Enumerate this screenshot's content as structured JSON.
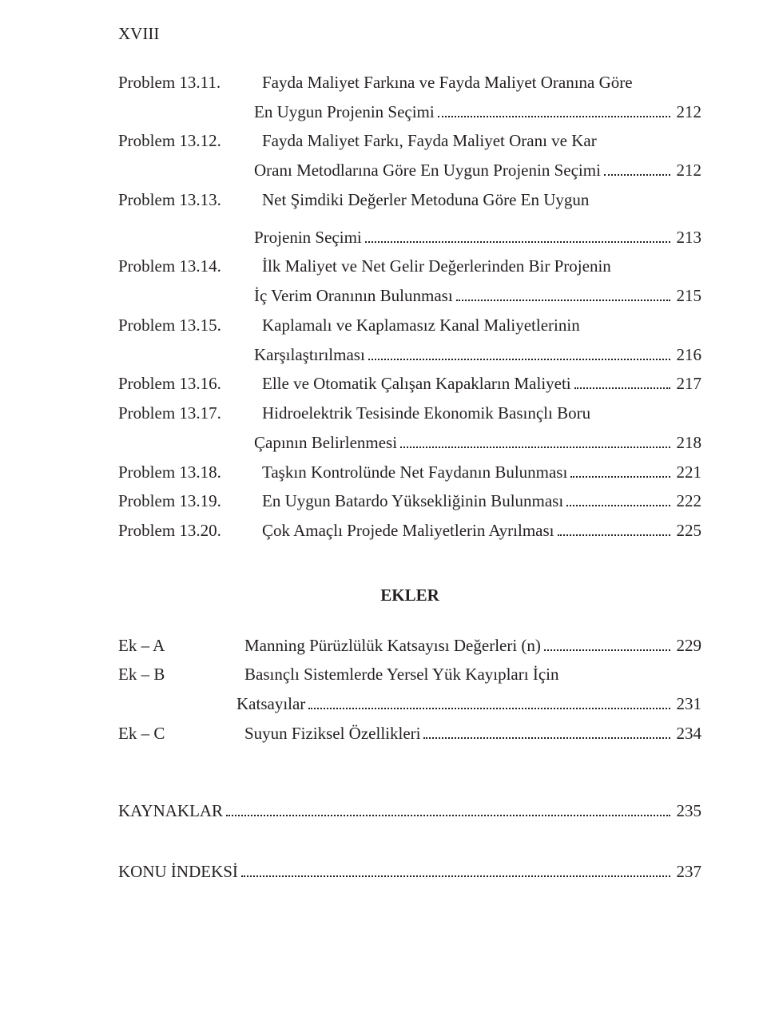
{
  "header": "XVIII",
  "toc": [
    {
      "label": "Problem 13.11.",
      "lines": [
        "Fayda Maliyet Farkına ve Fayda Maliyet Oranına Göre",
        "En Uygun Projenin Seçimi"
      ],
      "page": "212"
    },
    {
      "label": "Problem 13.12.",
      "lines": [
        "Fayda Maliyet Farkı, Fayda Maliyet Oranı ve Kar",
        "Oranı Metodlarına Göre En Uygun Projenin Seçimi"
      ],
      "page": "212"
    },
    {
      "label": "Problem 13.13.",
      "lines": [
        "Net Şimdiki Değerler Metoduna Göre En Uygun",
        "Projenin Seçimi"
      ],
      "page": "213",
      "extra_gap": true
    },
    {
      "label": "Problem 13.14.",
      "lines": [
        "İlk Maliyet ve Net Gelir Değerlerinden Bir Projenin",
        "İç Verim Oranının Bulunması"
      ],
      "page": "215"
    },
    {
      "label": "Problem 13.15.",
      "lines": [
        "Kaplamalı ve Kaplamasız Kanal Maliyetlerinin",
        "Karşılaştırılması"
      ],
      "page": "216"
    },
    {
      "label": "Problem 13.16.",
      "lines": [
        "Elle ve Otomatik Çalışan Kapakların Maliyeti"
      ],
      "page": "217"
    },
    {
      "label": "Problem 13.17.",
      "lines": [
        "Hidroelektrik Tesisinde Ekonomik Basınçlı Boru",
        "Çapının Belirlenmesi"
      ],
      "page": "218"
    },
    {
      "label": "Problem 13.18.",
      "lines": [
        "Taşkın Kontrolünde Net Faydanın Bulunması"
      ],
      "page": "221"
    },
    {
      "label": "Problem 13.19.",
      "lines": [
        "En Uygun Batardo Yüksekliğinin Bulunması"
      ],
      "page": "222"
    },
    {
      "label": "Problem 13.20.",
      "lines": [
        "Çok Amaçlı Projede Maliyetlerin Ayrılması"
      ],
      "page": "225"
    }
  ],
  "appendix_title": "EKLER",
  "appendix": [
    {
      "label": "Ek – A",
      "lines": [
        "Manning Pürüzlülük Katsayısı Değerleri (n)"
      ],
      "page": "229"
    },
    {
      "label": "Ek – B",
      "lines": [
        "Basınçlı Sistemlerde Yersel Yük Kayıpları İçin",
        "Katsayılar"
      ],
      "page": "231"
    },
    {
      "label": "Ek – C",
      "lines": [
        "Suyun Fiziksel Özellikleri"
      ],
      "page": "234"
    }
  ],
  "tail": [
    {
      "label": "KAYNAKLAR",
      "page": "235"
    },
    {
      "label": "KONU İNDEKSİ",
      "page": "237"
    }
  ]
}
